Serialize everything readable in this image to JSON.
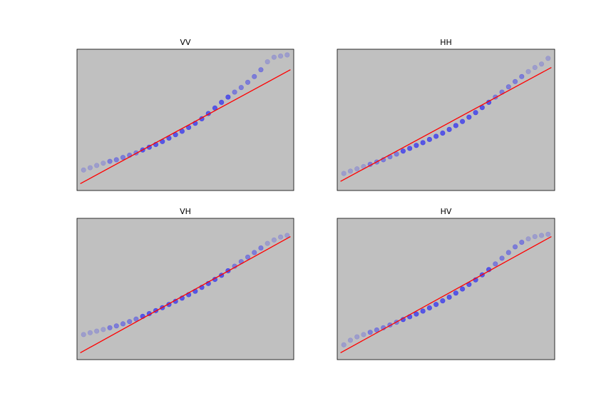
{
  "colors": {
    "figure_background": "#ffffff",
    "axes_background": "#c0c0c0",
    "points": "#0000ff",
    "reference_line": "#ff0000"
  },
  "chart_data": [
    {
      "type": "scatter",
      "title": "VV",
      "xlabel": "",
      "ylabel": "",
      "ticks_shown": false,
      "grid": false,
      "xlim": [
        -3.3,
        3.3
      ],
      "ylim": [
        -2.9,
        3.3
      ],
      "points": {
        "label": "",
        "x": [
          -3.1,
          -2.9,
          -2.7,
          -2.5,
          -2.3,
          -2.1,
          -1.9,
          -1.7,
          -1.5,
          -1.3,
          -1.1,
          -0.9,
          -0.7,
          -0.5,
          -0.3,
          -0.1,
          0.1,
          0.3,
          0.5,
          0.7,
          0.9,
          1.1,
          1.3,
          1.5,
          1.7,
          1.9,
          2.1,
          2.3,
          2.5,
          2.7,
          2.9,
          3.1
        ],
        "y": [
          -2.0,
          -1.9,
          -1.8,
          -1.7,
          -1.62,
          -1.55,
          -1.45,
          -1.35,
          -1.25,
          -1.12,
          -1.0,
          -0.88,
          -0.75,
          -0.6,
          -0.45,
          -0.3,
          -0.13,
          0.05,
          0.25,
          0.48,
          0.72,
          0.97,
          1.2,
          1.42,
          1.62,
          1.85,
          2.1,
          2.4,
          2.75,
          2.95,
          3.0,
          3.05
        ]
      },
      "reference_line": {
        "x": [
          -3.2,
          3.2
        ],
        "y": [
          -2.6,
          2.4
        ]
      }
    },
    {
      "type": "scatter",
      "title": "HH",
      "xlabel": "",
      "ylabel": "",
      "ticks_shown": false,
      "grid": false,
      "xlim": [
        -3.3,
        3.3
      ],
      "ylim": [
        -2.9,
        3.3
      ],
      "points": {
        "label": "",
        "x": [
          -3.1,
          -2.9,
          -2.7,
          -2.5,
          -2.3,
          -2.1,
          -1.9,
          -1.7,
          -1.5,
          -1.3,
          -1.1,
          -0.9,
          -0.7,
          -0.5,
          -0.3,
          -0.1,
          0.1,
          0.3,
          0.5,
          0.7,
          0.9,
          1.1,
          1.3,
          1.5,
          1.7,
          1.9,
          2.1,
          2.3,
          2.5,
          2.7,
          2.9,
          3.1
        ],
        "y": [
          -2.15,
          -2.05,
          -1.95,
          -1.85,
          -1.75,
          -1.65,
          -1.55,
          -1.42,
          -1.3,
          -1.17,
          -1.05,
          -0.92,
          -0.8,
          -0.66,
          -0.52,
          -0.38,
          -0.22,
          -0.05,
          0.13,
          0.32,
          0.52,
          0.74,
          0.97,
          1.2,
          1.42,
          1.65,
          1.88,
          2.1,
          2.32,
          2.5,
          2.65,
          2.9
        ]
      },
      "reference_line": {
        "x": [
          -3.2,
          3.2
        ],
        "y": [
          -2.5,
          2.5
        ]
      }
    },
    {
      "type": "scatter",
      "title": "VH",
      "xlabel": "",
      "ylabel": "",
      "ticks_shown": false,
      "grid": false,
      "xlim": [
        -3.3,
        3.3
      ],
      "ylim": [
        -2.9,
        3.3
      ],
      "points": {
        "label": "",
        "x": [
          -3.1,
          -2.9,
          -2.7,
          -2.5,
          -2.3,
          -2.1,
          -1.9,
          -1.7,
          -1.5,
          -1.3,
          -1.1,
          -0.9,
          -0.7,
          -0.5,
          -0.3,
          -0.1,
          0.1,
          0.3,
          0.5,
          0.7,
          0.9,
          1.1,
          1.3,
          1.5,
          1.7,
          1.9,
          2.1,
          2.3,
          2.5,
          2.7,
          2.9,
          3.1
        ],
        "y": [
          -1.8,
          -1.72,
          -1.65,
          -1.58,
          -1.5,
          -1.42,
          -1.33,
          -1.23,
          -1.12,
          -1.0,
          -0.88,
          -0.75,
          -0.62,
          -0.48,
          -0.34,
          -0.2,
          -0.05,
          0.1,
          0.27,
          0.44,
          0.62,
          0.8,
          1.0,
          1.2,
          1.4,
          1.6,
          1.8,
          2.0,
          2.2,
          2.35,
          2.48,
          2.55
        ]
      },
      "reference_line": {
        "x": [
          -3.2,
          3.2
        ],
        "y": [
          -2.6,
          2.5
        ]
      }
    },
    {
      "type": "scatter",
      "title": "HV",
      "xlabel": "",
      "ylabel": "",
      "ticks_shown": false,
      "grid": false,
      "xlim": [
        -3.3,
        3.3
      ],
      "ylim": [
        -2.9,
        3.3
      ],
      "points": {
        "label": "",
        "x": [
          -3.1,
          -2.9,
          -2.7,
          -2.5,
          -2.3,
          -2.1,
          -1.9,
          -1.7,
          -1.5,
          -1.3,
          -1.1,
          -0.9,
          -0.7,
          -0.5,
          -0.3,
          -0.1,
          0.1,
          0.3,
          0.5,
          0.7,
          0.9,
          1.1,
          1.3,
          1.5,
          1.7,
          1.9,
          2.1,
          2.3,
          2.5,
          2.7,
          2.9,
          3.1
        ],
        "y": [
          -2.25,
          -2.05,
          -1.9,
          -1.8,
          -1.7,
          -1.6,
          -1.5,
          -1.38,
          -1.26,
          -1.14,
          -1.02,
          -0.9,
          -0.77,
          -0.63,
          -0.48,
          -0.32,
          -0.16,
          0.02,
          0.2,
          0.4,
          0.6,
          0.82,
          1.05,
          1.3,
          1.55,
          1.8,
          2.05,
          2.25,
          2.4,
          2.5,
          2.55,
          2.6
        ]
      },
      "reference_line": {
        "x": [
          -3.2,
          3.2
        ],
        "y": [
          -2.6,
          2.5
        ]
      }
    }
  ]
}
